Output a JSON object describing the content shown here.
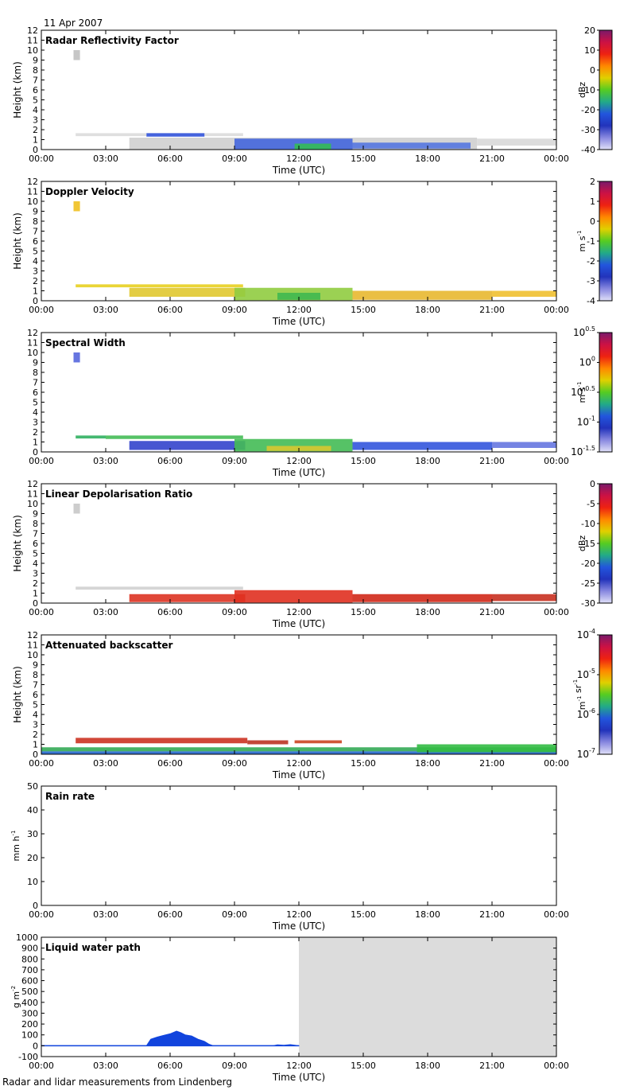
{
  "date": "11 Apr 2007",
  "footer": "Radar and lidar measurements from Lindenberg",
  "time_ticks": [
    "00:00",
    "03:00",
    "06:00",
    "09:00",
    "12:00",
    "15:00",
    "18:00",
    "21:00",
    "00:00"
  ],
  "xlabel": "Time (UTC)",
  "chart_data": [
    {
      "type": "heatmap",
      "title": "Radar Reflectivity Factor",
      "ylabel": "Height (km)",
      "ylim": [
        0,
        12
      ],
      "yticks": [
        "0",
        "1",
        "2",
        "3",
        "4",
        "5",
        "6",
        "7",
        "8",
        "9",
        "10",
        "11",
        "12"
      ],
      "colorbar": {
        "unit": "dBz",
        "scale": "linear",
        "range": [
          -40,
          20
        ],
        "ticks": [
          "20",
          "10",
          "0",
          "-10",
          "-20",
          "-30",
          "-40"
        ]
      },
      "layers": [
        {
          "t": [
            1.5,
            1.8
          ],
          "h": [
            9.0,
            10.0
          ],
          "color": "#c0c0c0"
        },
        {
          "t": [
            1.6,
            9.4
          ],
          "h": [
            1.35,
            1.65
          ],
          "color": "#dcdcdc"
        },
        {
          "t": [
            4.9,
            7.6
          ],
          "h": [
            1.3,
            1.65
          ],
          "color": "#3355dd"
        },
        {
          "t": [
            4.1,
            20.3
          ],
          "h": [
            0.05,
            1.2
          ],
          "color": "#cfcfcf"
        },
        {
          "t": [
            9.0,
            14.5
          ],
          "h": [
            0.0,
            1.1
          ],
          "color": "#4466dd"
        },
        {
          "t": [
            11.8,
            13.5
          ],
          "h": [
            0.0,
            0.6
          ],
          "color": "#33bb55"
        },
        {
          "t": [
            14.5,
            20.0
          ],
          "h": [
            0.1,
            0.7
          ],
          "color": "#5577e0"
        },
        {
          "t": [
            20.3,
            24.0
          ],
          "h": [
            0.4,
            1.1
          ],
          "color": "#d8d8d8"
        }
      ]
    },
    {
      "type": "heatmap",
      "title": "Doppler Velocity",
      "ylabel": "Height (km)",
      "ylim": [
        0,
        12
      ],
      "yticks": [
        "0",
        "1",
        "2",
        "3",
        "4",
        "5",
        "6",
        "7",
        "8",
        "9",
        "10",
        "11",
        "12"
      ],
      "colorbar": {
        "unit": "m s-1",
        "scale": "linear",
        "range": [
          -4,
          2
        ],
        "ticks": [
          "2",
          "1",
          "0",
          "-1",
          "-2",
          "-3",
          "-4"
        ]
      },
      "layers": [
        {
          "t": [
            1.5,
            1.8
          ],
          "h": [
            9.0,
            10.0
          ],
          "color": "#f0c020"
        },
        {
          "t": [
            1.6,
            9.4
          ],
          "h": [
            1.35,
            1.65
          ],
          "color": "#e8d020"
        },
        {
          "t": [
            4.1,
            9.5
          ],
          "h": [
            0.4,
            1.3
          ],
          "color": "#e0c830"
        },
        {
          "t": [
            9.0,
            14.5
          ],
          "h": [
            0.05,
            1.3
          ],
          "color": "#90cc40"
        },
        {
          "t": [
            11.0,
            13.0
          ],
          "h": [
            0.1,
            0.8
          ],
          "color": "#40b850"
        },
        {
          "t": [
            14.5,
            21.0
          ],
          "h": [
            0.1,
            1.0
          ],
          "color": "#e8b830"
        },
        {
          "t": [
            21.0,
            24.0
          ],
          "h": [
            0.4,
            1.0
          ],
          "color": "#f0c030"
        }
      ]
    },
    {
      "type": "heatmap",
      "title": "Spectral Width",
      "ylabel": "",
      "ylim": [
        0,
        12
      ],
      "yticks": [
        "0",
        "1",
        "2",
        "3",
        "4",
        "5",
        "6",
        "7",
        "8",
        "9",
        "10",
        "11",
        "12"
      ],
      "colorbar": {
        "unit": "m s-1",
        "scale": "log",
        "range": [
          -1.5,
          0.5
        ],
        "ticks": [
          "10^0.5",
          "10^0",
          "10^-0.5",
          "10^-1",
          "10^-1.5"
        ]
      },
      "layers": [
        {
          "t": [
            1.5,
            1.8
          ],
          "h": [
            9.0,
            10.0
          ],
          "color": "#5566dd"
        },
        {
          "t": [
            1.6,
            3.0
          ],
          "h": [
            1.35,
            1.65
          ],
          "color": "#30b060"
        },
        {
          "t": [
            3.0,
            9.4
          ],
          "h": [
            1.3,
            1.65
          ],
          "color": "#44bb55"
        },
        {
          "t": [
            4.1,
            9.5
          ],
          "h": [
            0.2,
            1.1
          ],
          "color": "#3344cc"
        },
        {
          "t": [
            9.0,
            14.5
          ],
          "h": [
            0.05,
            1.3
          ],
          "color": "#44bb55"
        },
        {
          "t": [
            10.5,
            13.5
          ],
          "h": [
            0.1,
            0.6
          ],
          "color": "#d8c830"
        },
        {
          "t": [
            14.5,
            21.0
          ],
          "h": [
            0.2,
            1.0
          ],
          "color": "#3355dd"
        },
        {
          "t": [
            21.0,
            24.0
          ],
          "h": [
            0.4,
            1.0
          ],
          "color": "#6677e0"
        }
      ]
    },
    {
      "type": "heatmap",
      "title": "Linear Depolarisation Ratio",
      "ylabel": "Height (km)",
      "ylim": [
        0,
        12
      ],
      "yticks": [
        "0",
        "1",
        "2",
        "3",
        "4",
        "5",
        "6",
        "7",
        "8",
        "9",
        "10",
        "11",
        "12"
      ],
      "colorbar": {
        "unit": "dBz",
        "scale": "linear",
        "range": [
          -30,
          0
        ],
        "ticks": [
          "0",
          "-5",
          "-10",
          "-15",
          "-20",
          "-25",
          "-30"
        ]
      },
      "layers": [
        {
          "t": [
            1.5,
            1.8
          ],
          "h": [
            9.0,
            10.0
          ],
          "color": "#c8c8c8"
        },
        {
          "t": [
            1.6,
            9.4
          ],
          "h": [
            1.35,
            1.65
          ],
          "color": "#d0d0d0"
        },
        {
          "t": [
            4.1,
            9.5
          ],
          "h": [
            0.1,
            0.9
          ],
          "color": "#dd3322"
        },
        {
          "t": [
            9.0,
            14.5
          ],
          "h": [
            0.05,
            1.3
          ],
          "color": "#e03020"
        },
        {
          "t": [
            14.5,
            21.0
          ],
          "h": [
            0.1,
            0.9
          ],
          "color": "#d02818"
        },
        {
          "t": [
            21.0,
            24.0
          ],
          "h": [
            0.2,
            0.9
          ],
          "color": "#c83020"
        }
      ]
    },
    {
      "type": "heatmap",
      "title": "Attenuated backscatter",
      "ylabel": "Height (km)",
      "ylim": [
        0,
        12
      ],
      "yticks": [
        "0",
        "1",
        "2",
        "3",
        "4",
        "5",
        "6",
        "7",
        "8",
        "9",
        "10",
        "11",
        "12"
      ],
      "colorbar": {
        "unit": "m-1 sr-1",
        "scale": "log",
        "range": [
          -7,
          -4
        ],
        "ticks": [
          "10^-4",
          "10^-5",
          "10^-6",
          "10^-7"
        ]
      },
      "layers": [
        {
          "t": [
            0.0,
            24.0
          ],
          "h": [
            0.0,
            0.3
          ],
          "color": "#2266cc"
        },
        {
          "t": [
            0.0,
            24.0
          ],
          "h": [
            0.3,
            0.7
          ],
          "color": "#33aa55"
        },
        {
          "t": [
            1.6,
            9.6
          ],
          "h": [
            1.1,
            1.65
          ],
          "color": "#cc3322"
        },
        {
          "t": [
            9.6,
            11.5
          ],
          "h": [
            1.0,
            1.4
          ],
          "color": "#bb3322"
        },
        {
          "t": [
            11.8,
            14.0
          ],
          "h": [
            1.1,
            1.4
          ],
          "color": "#cc4422"
        },
        {
          "t": [
            17.5,
            24.0
          ],
          "h": [
            0.2,
            1.0
          ],
          "color": "#33bb44"
        }
      ]
    },
    {
      "type": "line",
      "title": "Rain rate",
      "ylabel": "mm h-1",
      "ylim": [
        0,
        50
      ],
      "yticks": [
        "0",
        "10",
        "20",
        "30",
        "40",
        "50"
      ],
      "series": []
    },
    {
      "type": "area",
      "title": "Liquid water path",
      "ylabel": "g m-2",
      "ylim": [
        -100,
        1000
      ],
      "yticks": [
        "-100",
        "0",
        "100",
        "200",
        "300",
        "400",
        "500",
        "600",
        "700",
        "800",
        "900",
        "1000"
      ],
      "x_hours": [
        0,
        4.9,
        5.1,
        5.4,
        5.7,
        6.0,
        6.3,
        6.5,
        6.7,
        7.0,
        7.3,
        7.6,
        7.8,
        8.0,
        10.8,
        11.0,
        11.3,
        11.6,
        12.0
      ],
      "values": [
        0,
        0,
        60,
        80,
        95,
        110,
        135,
        120,
        100,
        90,
        60,
        40,
        15,
        0,
        0,
        8,
        5,
        10,
        0
      ],
      "missing_range": [
        12,
        24
      ]
    }
  ]
}
